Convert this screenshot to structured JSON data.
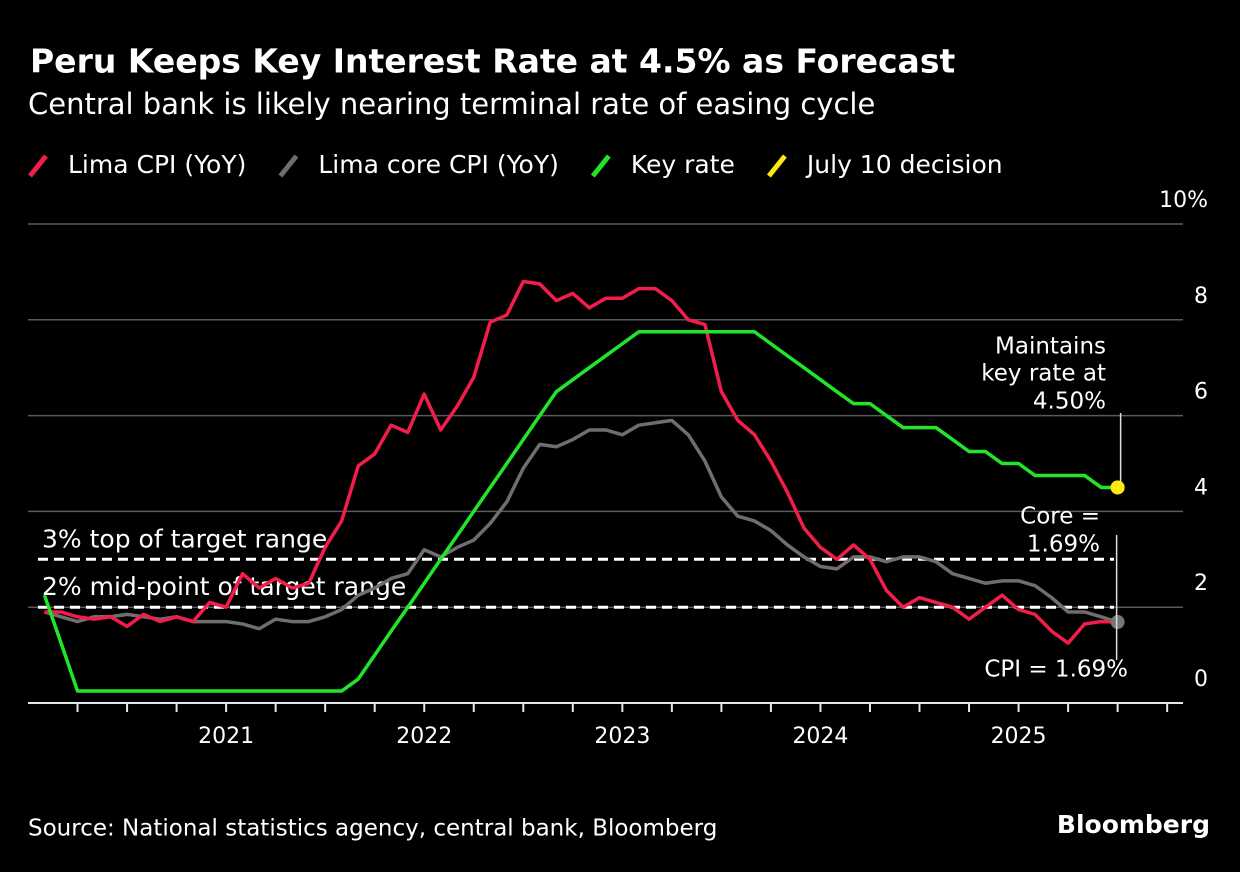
{
  "chart_data": {
    "type": "line",
    "title": "Peru Keeps Key Interest Rate at 4.5% as Forecast",
    "subtitle": "Central bank is likely nearing terminal rate of easing cycle",
    "source": "Source: National statistics agency, central bank, Bloomberg",
    "brand": "Bloomberg",
    "x": [
      2020.083,
      2020.167,
      2020.25,
      2020.333,
      2020.417,
      2020.5,
      2020.583,
      2020.667,
      2020.75,
      2020.833,
      2020.917,
      2021,
      2021.083,
      2021.167,
      2021.25,
      2021.333,
      2021.417,
      2021.5,
      2021.583,
      2021.667,
      2021.75,
      2021.833,
      2021.917,
      2022,
      2022.083,
      2022.167,
      2022.25,
      2022.333,
      2022.417,
      2022.5,
      2022.583,
      2022.667,
      2022.75,
      2022.833,
      2022.917,
      2023,
      2023.083,
      2023.167,
      2023.25,
      2023.333,
      2023.417,
      2023.5,
      2023.583,
      2023.667,
      2023.75,
      2023.833,
      2023.917,
      2024,
      2024.083,
      2024.167,
      2024.25,
      2024.333,
      2024.417,
      2024.5,
      2024.583,
      2024.667,
      2024.75,
      2024.833,
      2024.917,
      2025,
      2025.083,
      2025.167,
      2025.25,
      2025.333,
      2025.417,
      2025.5
    ],
    "series": [
      {
        "name": "Lima CPI (YoY)",
        "color": "#f21d4a",
        "values": [
          1.9,
          1.9,
          1.8,
          1.75,
          1.8,
          1.6,
          1.85,
          1.7,
          1.8,
          1.7,
          2.1,
          2.0,
          2.7,
          2.4,
          2.6,
          2.4,
          2.5,
          3.25,
          3.8,
          4.95,
          5.2,
          5.8,
          5.65,
          6.45,
          5.7,
          6.2,
          6.8,
          7.95,
          8.1,
          8.8,
          8.75,
          8.4,
          8.55,
          8.25,
          8.45,
          8.45,
          8.65,
          8.65,
          8.4,
          8.0,
          7.9,
          6.5,
          5.9,
          5.6,
          5.05,
          4.4,
          3.65,
          3.25,
          3.0,
          3.3,
          3.0,
          2.35,
          2.0,
          2.2,
          2.1,
          2.0,
          1.75,
          2.0,
          2.25,
          1.95,
          1.85,
          1.5,
          1.25,
          1.65,
          1.7,
          1.69
        ]
      },
      {
        "name": "Lima core CPI (YoY)",
        "color": "#6e6e6e",
        "values": [
          1.9,
          1.8,
          1.7,
          1.8,
          1.8,
          1.85,
          1.8,
          1.75,
          1.8,
          1.7,
          1.7,
          1.7,
          1.65,
          1.55,
          1.75,
          1.7,
          1.7,
          1.8,
          1.95,
          2.25,
          2.4,
          2.6,
          2.7,
          3.2,
          3.05,
          3.25,
          3.4,
          3.75,
          4.2,
          4.9,
          5.4,
          5.35,
          5.5,
          5.7,
          5.7,
          5.6,
          5.8,
          5.85,
          5.9,
          5.6,
          5.05,
          4.3,
          3.9,
          3.8,
          3.6,
          3.3,
          3.05,
          2.85,
          2.8,
          3.05,
          3.05,
          2.95,
          3.05,
          3.05,
          2.95,
          2.7,
          2.6,
          2.5,
          2.55,
          2.55,
          2.45,
          2.2,
          1.9,
          1.9,
          1.8,
          1.69
        ]
      },
      {
        "name": "Key rate",
        "color": "#22e52a",
        "values": [
          2.25,
          1.25,
          0.25,
          0.25,
          0.25,
          0.25,
          0.25,
          0.25,
          0.25,
          0.25,
          0.25,
          0.25,
          0.25,
          0.25,
          0.25,
          0.25,
          0.25,
          0.25,
          0.25,
          0.5,
          1.0,
          1.5,
          2.0,
          2.5,
          3.0,
          3.5,
          4.0,
          4.5,
          5.0,
          5.5,
          6.0,
          6.5,
          6.75,
          7.0,
          7.25,
          7.5,
          7.75,
          7.75,
          7.75,
          7.75,
          7.75,
          7.75,
          7.75,
          7.75,
          7.5,
          7.25,
          7.0,
          6.75,
          6.5,
          6.25,
          6.25,
          6.0,
          5.75,
          5.75,
          5.75,
          5.5,
          5.25,
          5.25,
          5.0,
          5.0,
          4.75,
          4.75,
          4.75,
          4.75,
          4.5,
          4.5
        ]
      },
      {
        "name": "July 10 decision",
        "color": "#ffe814",
        "type": "point",
        "x": [
          2025.5
        ],
        "values": [
          4.5
        ]
      }
    ],
    "reference_lines": [
      {
        "label": "3% top of target range",
        "value": 3
      },
      {
        "label": "2% mid-point of target range",
        "value": 2
      }
    ],
    "annotations": [
      {
        "lines": [
          "Maintains",
          "key rate at",
          "4.50%"
        ],
        "x": 2025.5,
        "y": 4.5
      },
      {
        "lines": [
          "Core =",
          "1.69%"
        ],
        "x": 2025.5,
        "y": 1.69
      },
      {
        "lines": [
          "CPI = 1.69%"
        ],
        "x": 2025.5,
        "y": 1.69
      }
    ],
    "xlim": [
      2020,
      2025.83
    ],
    "xticks": [
      2021,
      2022,
      2023,
      2024,
      2025
    ],
    "xminorticks": [
      2020.25,
      2020.5,
      2020.75,
      2021.25,
      2021.5,
      2021.75,
      2022.25,
      2022.5,
      2022.75,
      2023.25,
      2023.5,
      2023.75,
      2024.25,
      2024.5,
      2024.75,
      2025.25,
      2025.5,
      2025.75
    ],
    "ylim": [
      0,
      10
    ],
    "yticks": [
      0,
      2,
      4,
      6,
      8,
      {
        "value": 10,
        "label": "10%"
      }
    ],
    "grid": true
  }
}
